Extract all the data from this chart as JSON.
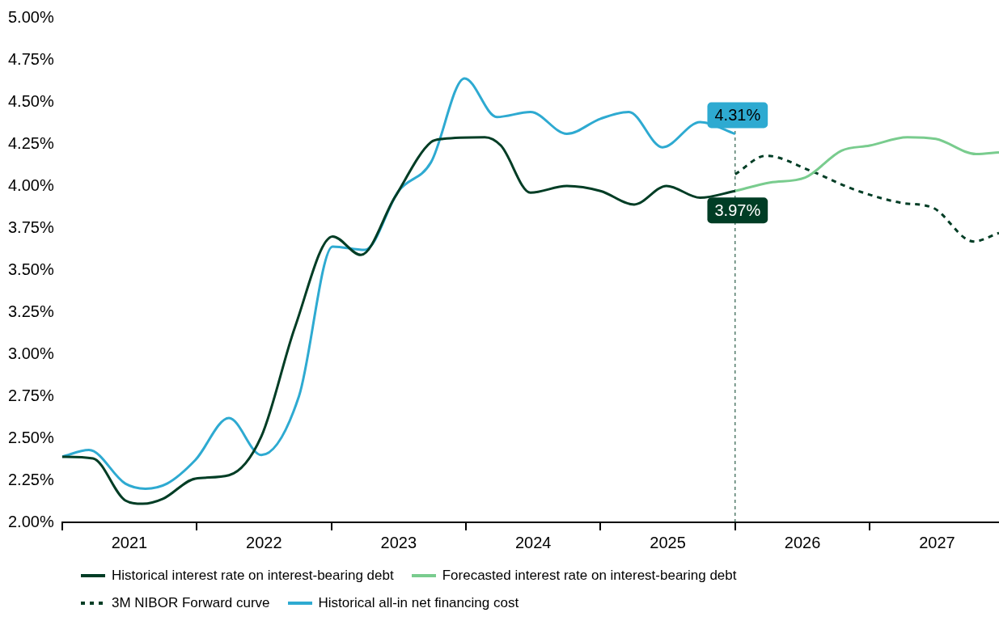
{
  "chart_data": {
    "type": "line",
    "xlim": [
      2021,
      2027.96
    ],
    "xticks": [
      {
        "value": 2021,
        "label": null
      },
      {
        "value": 2021.5,
        "label": "2021"
      },
      {
        "value": 2022,
        "label": null
      },
      {
        "value": 2022.5,
        "label": "2022"
      },
      {
        "value": 2023,
        "label": null
      },
      {
        "value": 2023.5,
        "label": "2023"
      },
      {
        "value": 2024,
        "label": null
      },
      {
        "value": 2024.5,
        "label": "2024"
      },
      {
        "value": 2025,
        "label": null
      },
      {
        "value": 2025.5,
        "label": "2025"
      },
      {
        "value": 2026,
        "label": null
      },
      {
        "value": 2026.5,
        "label": "2026"
      },
      {
        "value": 2027,
        "label": null
      },
      {
        "value": 2027.5,
        "label": "2027"
      }
    ],
    "ylim": [
      2,
      5
    ],
    "yticks": [
      {
        "value": 2,
        "label": "2.00%"
      },
      {
        "value": 2.25,
        "label": "2.25%"
      },
      {
        "value": 2.5,
        "label": "2.50%"
      },
      {
        "value": 2.75,
        "label": "2.75%"
      },
      {
        "value": 3,
        "label": "3.00%"
      },
      {
        "value": 3.25,
        "label": "3.25%"
      },
      {
        "value": 3.5,
        "label": "3.50%"
      },
      {
        "value": 3.75,
        "label": "3.75%"
      },
      {
        "value": 4,
        "label": "4.00%"
      },
      {
        "value": 4.25,
        "label": "4.25%"
      },
      {
        "value": 4.5,
        "label": "4.50%"
      },
      {
        "value": 4.75,
        "label": "4.75%"
      },
      {
        "value": 5,
        "label": "5.00%"
      }
    ],
    "legend": "bottom",
    "ref_lines": [
      {
        "axis": "x",
        "value": 2026,
        "color": "#003d25",
        "line_style": "dashed"
      }
    ],
    "series": [
      {
        "name": "Historical interest rate on interest-bearing debt",
        "color": "#003d25",
        "x": [
          2021,
          2021.23,
          2021.47,
          2021.6,
          2021.75,
          2021.99,
          2022.24,
          2022.48,
          2022.73,
          2023.01,
          2023.22,
          2023.47,
          2023.74,
          2023.83,
          2024.14,
          2024.26,
          2024.48,
          2024.75,
          2025,
          2025.25,
          2025.49,
          2025.74,
          2026
        ],
        "values": [
          2.39,
          2.38,
          2.13,
          2.11,
          2.14,
          2.26,
          2.28,
          2.51,
          3.16,
          3.7,
          3.59,
          3.93,
          4.26,
          4.28,
          4.29,
          4.24,
          3.96,
          4,
          3.97,
          3.89,
          4,
          3.93,
          3.97
        ],
        "value_labels": [
          null,
          null,
          null,
          null,
          null,
          null,
          null,
          null,
          null,
          null,
          null,
          null,
          null,
          null,
          null,
          null,
          null,
          null,
          null,
          null,
          null,
          null,
          "3.97%"
        ]
      },
      {
        "name": "Forecasted interest rate on interest-bearing debt",
        "color": "#79cc8e",
        "x": [
          2026,
          2026.26,
          2026.52,
          2026.79,
          2027,
          2027.28,
          2027.49,
          2027.79,
          2027.96
        ],
        "values": [
          3.97,
          4.02,
          4.05,
          4.21,
          4.24,
          4.29,
          4.28,
          4.19,
          4.2
        ]
      },
      {
        "name": "3M NIBOR Forward curve",
        "color": "#003d25",
        "line_style": "dashed",
        "x": [
          2026,
          2026.23,
          2026.56,
          2026.88,
          2027.23,
          2027.47,
          2027.77,
          2027.96
        ],
        "values": [
          4.07,
          4.18,
          4.09,
          3.98,
          3.9,
          3.87,
          3.67,
          3.72
        ]
      },
      {
        "name": "Historical all-in net financing cost",
        "color": "#2eaad1",
        "x": [
          2021,
          2021.2,
          2021.47,
          2021.62,
          2021.78,
          2021.99,
          2022.24,
          2022.48,
          2022.76,
          2023.01,
          2023.25,
          2023.5,
          2023.74,
          2023.99,
          2024.23,
          2024.48,
          2024.75,
          2025,
          2025.21,
          2025.46,
          2025.74,
          2026
        ],
        "values": [
          2.39,
          2.43,
          2.23,
          2.2,
          2.23,
          2.37,
          2.62,
          2.4,
          2.75,
          3.64,
          3.62,
          3.97,
          4.14,
          4.64,
          4.41,
          4.44,
          4.31,
          4.4,
          4.44,
          4.23,
          4.38,
          4.31
        ],
        "value_labels": [
          null,
          null,
          null,
          null,
          null,
          null,
          null,
          null,
          null,
          null,
          null,
          null,
          null,
          null,
          null,
          null,
          null,
          null,
          null,
          null,
          null,
          "4.31%"
        ]
      }
    ]
  }
}
